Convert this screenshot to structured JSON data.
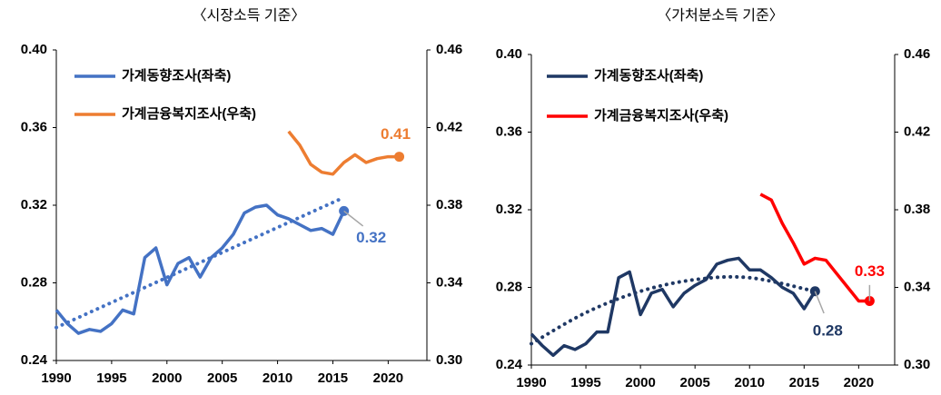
{
  "chart_data": [
    {
      "type": "line",
      "title": "〈시장소득 기준〉",
      "xlim": [
        1990,
        2023.5
      ],
      "xticks": [
        1990,
        1995,
        2000,
        2005,
        2010,
        2015,
        2020
      ],
      "ylim": [
        0.24,
        0.4
      ],
      "yticks": [
        0.24,
        0.28,
        0.32,
        0.36,
        {
          "value": 0.4,
          "label": "0.40"
        }
      ],
      "y2lim": [
        0.3,
        0.46
      ],
      "y2ticks": [
        {
          "value": 0.3,
          "label": "0.30"
        },
        0.34,
        0.38,
        0.42,
        0.46
      ],
      "series": [
        {
          "name": "가계동향조사(좌축)",
          "color": "#4472c4",
          "axis": "y",
          "x": [
            1990,
            1991,
            1992,
            1993,
            1994,
            1995,
            1996,
            1997,
            1998,
            1999,
            2000,
            2001,
            2002,
            2003,
            2004,
            2005,
            2006,
            2007,
            2008,
            2009,
            2010,
            2011,
            2012,
            2013,
            2014,
            2015,
            2016
          ],
          "values": [
            0.266,
            0.259,
            0.254,
            0.256,
            0.255,
            0.259,
            0.266,
            0.264,
            0.293,
            0.298,
            0.279,
            0.29,
            0.293,
            0.283,
            0.293,
            0.298,
            0.305,
            0.316,
            0.319,
            0.32,
            0.315,
            0.313,
            0.31,
            0.307,
            0.308,
            0.305,
            0.317
          ],
          "value_labels": [
            null,
            null,
            null,
            null,
            null,
            null,
            null,
            null,
            null,
            null,
            null,
            null,
            null,
            null,
            null,
            null,
            null,
            null,
            null,
            null,
            null,
            null,
            null,
            null,
            null,
            null,
            "0.32"
          ]
        },
        {
          "name": "가계금융복지조사(우축)",
          "color": "#ed7d31",
          "axis": "y2",
          "x": [
            2011,
            2012,
            2013,
            2014,
            2015,
            2016,
            2017,
            2018,
            2019,
            2020,
            2021
          ],
          "values": [
            0.418,
            0.411,
            0.401,
            0.397,
            0.396,
            0.402,
            0.406,
            0.402,
            0.404,
            0.405,
            0.405
          ],
          "value_labels": [
            null,
            null,
            null,
            null,
            null,
            null,
            null,
            null,
            null,
            null,
            "0.41"
          ]
        }
      ],
      "trend": {
        "color": "#4472c4",
        "x": [
          1990,
          2016
        ],
        "values": [
          0.257,
          0.324
        ]
      }
    },
    {
      "type": "line",
      "title": "〈가처분소득 기준〉",
      "xlim": [
        1990,
        2023.3
      ],
      "xticks": [
        1990,
        1995,
        2000,
        2005,
        2010,
        2015,
        2020
      ],
      "ylim": [
        0.24,
        0.4
      ],
      "yticks": [
        0.24,
        0.28,
        0.32,
        0.36,
        {
          "value": 0.4,
          "label": "0.40"
        }
      ],
      "y2lim": [
        0.3,
        0.46
      ],
      "y2ticks": [
        {
          "value": 0.3,
          "label": "0.30"
        },
        0.34,
        0.38,
        0.42,
        0.46
      ],
      "series": [
        {
          "name": "가계동향조사(좌축)",
          "color": "#1f3864",
          "axis": "y",
          "x": [
            1990,
            1991,
            1992,
            1993,
            1994,
            1995,
            1996,
            1997,
            1998,
            1999,
            2000,
            2001,
            2002,
            2003,
            2004,
            2005,
            2006,
            2007,
            2008,
            2009,
            2010,
            2011,
            2012,
            2013,
            2014,
            2015,
            2016
          ],
          "values": [
            0.256,
            0.25,
            0.245,
            0.25,
            0.248,
            0.251,
            0.257,
            0.257,
            0.285,
            0.288,
            0.266,
            0.277,
            0.279,
            0.27,
            0.277,
            0.281,
            0.284,
            0.292,
            0.294,
            0.295,
            0.289,
            0.289,
            0.285,
            0.28,
            0.277,
            0.269,
            0.278
          ],
          "value_labels": [
            null,
            null,
            null,
            null,
            null,
            null,
            null,
            null,
            null,
            null,
            null,
            null,
            null,
            null,
            null,
            null,
            null,
            null,
            null,
            null,
            null,
            null,
            null,
            null,
            null,
            null,
            "0.28"
          ]
        },
        {
          "name": "가계금융복지조사(우축)",
          "color": "#ff0000",
          "axis": "y2",
          "x": [
            2011,
            2012,
            2013,
            2014,
            2015,
            2016,
            2017,
            2018,
            2019,
            2020,
            2021
          ],
          "values": [
            0.388,
            0.385,
            0.373,
            0.363,
            0.352,
            0.355,
            0.354,
            0.347,
            0.34,
            0.333,
            0.333
          ],
          "value_labels": [
            null,
            null,
            null,
            null,
            null,
            null,
            null,
            null,
            null,
            null,
            "0.33"
          ]
        }
      ],
      "trend": {
        "color": "#1f3864",
        "x": [
          1990,
          1995,
          2000,
          2005,
          2010,
          2016
        ],
        "values": [
          0.251,
          0.267,
          0.278,
          0.284,
          0.285,
          0.278
        ]
      }
    }
  ]
}
